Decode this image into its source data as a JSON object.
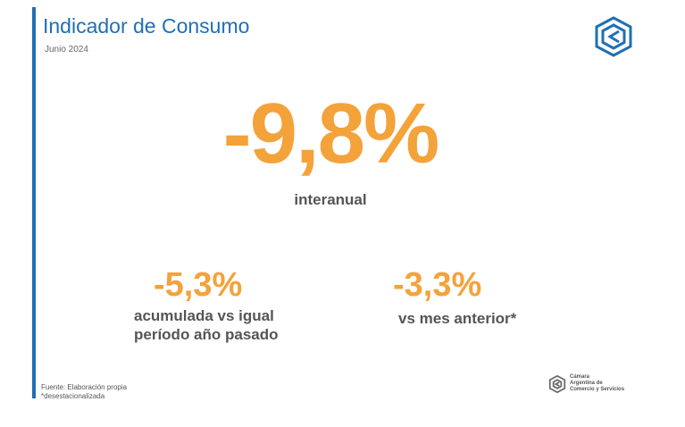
{
  "header": {
    "title": "Indicador de Consumo",
    "subtitle": "Junio 2024",
    "logo_icon": "cac-hexagon-logo-icon"
  },
  "headline": {
    "value": "-9,8%",
    "label": "interanual"
  },
  "metrics": [
    {
      "value": "-5,3%",
      "label_line1": "acumulada vs igual",
      "label_line2": "período año pasado"
    },
    {
      "value": "-3,3%",
      "label": "vs mes anterior*"
    }
  ],
  "footer": {
    "source": "Fuente: Elaboración propia",
    "note": "*desestacionalizada",
    "org_name_lines": [
      "Cámara",
      "Argentina de",
      "Comercio y Servicios"
    ],
    "org_logo_icon": "cac-hexagon-logo-icon"
  },
  "colors": {
    "accent_blue": "#1f6fb5",
    "highlight_orange": "#f4a23a",
    "text_gray": "#555555"
  }
}
